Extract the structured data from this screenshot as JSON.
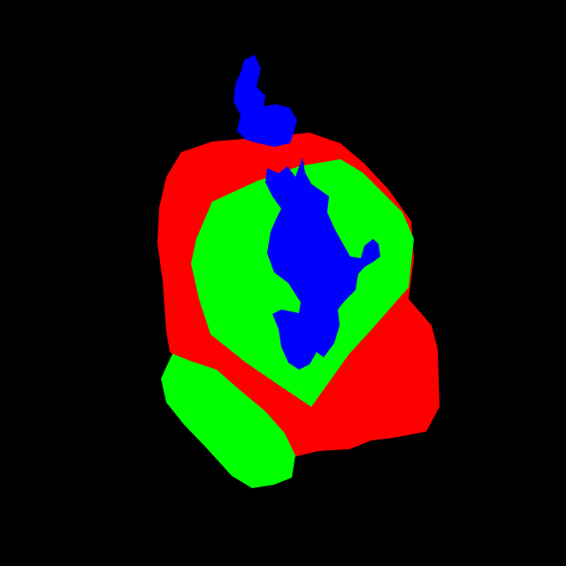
{
  "image": {
    "kind": "segmentation-mask",
    "background_color": "#000000",
    "regions": [
      {
        "name": "red-region",
        "color": "#FF0000"
      },
      {
        "name": "green-region-large",
        "color": "#00FF00"
      },
      {
        "name": "green-region-small",
        "color": "#00FF00"
      },
      {
        "name": "blue-region-top",
        "color": "#0000FF"
      },
      {
        "name": "blue-region-center",
        "color": "#0000FF"
      }
    ]
  }
}
